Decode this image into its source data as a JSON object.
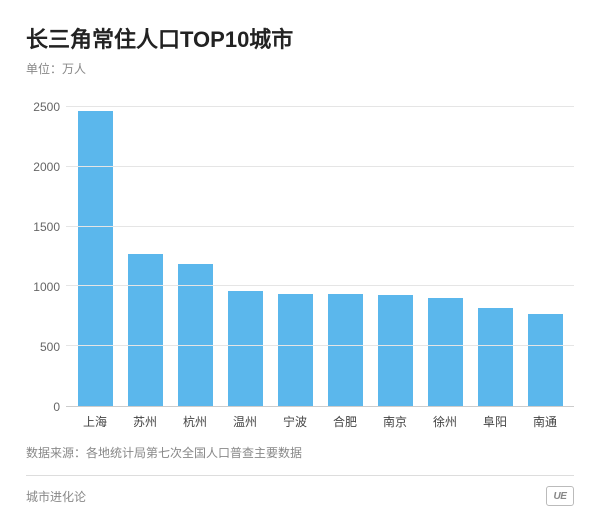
{
  "title": "长三角常住人口TOP10城市",
  "title_fontsize": 22,
  "subtitle": "单位：万人",
  "subtitle_fontsize": 12,
  "source_line": "数据来源：各地统计局第七次全国人口普查主要数据",
  "footer_brand": "城市进化论",
  "logo_text": "UE",
  "chart": {
    "type": "bar",
    "categories": [
      "上海",
      "苏州",
      "杭州",
      "温州",
      "宁波",
      "合肥",
      "南京",
      "徐州",
      "阜阳",
      "南通"
    ],
    "values": [
      2470,
      1270,
      1190,
      960,
      940,
      940,
      930,
      900,
      820,
      770
    ],
    "bar_color": "#5bb7ec",
    "ylim": [
      0,
      2500
    ],
    "ytick_step": 500,
    "grid_color": "#e5e5e5",
    "axis_text_color": "#666666",
    "background_color": "#ffffff",
    "bar_width_ratio": 0.7,
    "label_fontsize": 12
  }
}
